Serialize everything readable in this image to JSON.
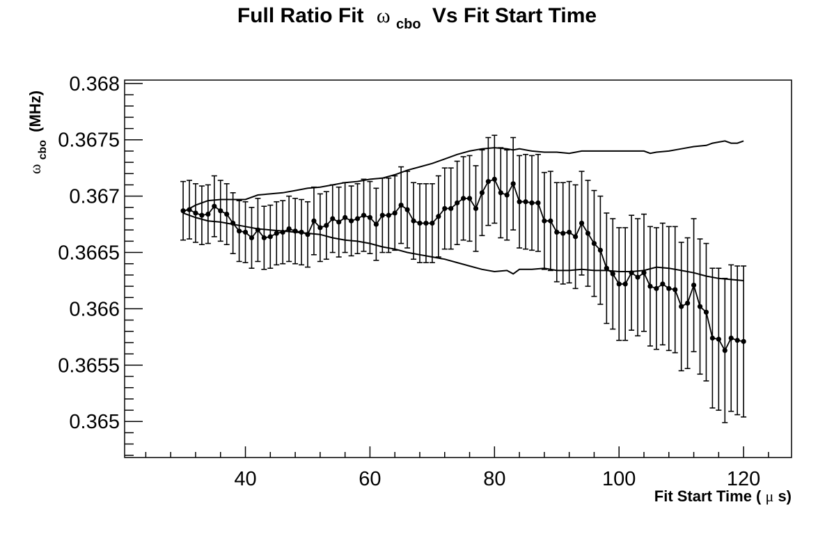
{
  "chart_data": {
    "type": "scatter",
    "title_parts": {
      "pre": "Full Ratio Fit",
      "symbol": "ω",
      "subscript": "cbo",
      "post": "Vs Fit Start Time"
    },
    "xlabel": {
      "text": "Fit Start Time (",
      "symbol": "μ",
      "unit": "s)"
    },
    "ylabel": {
      "symbol": "ω",
      "subscript": "cbo",
      "unit": "(MHz)"
    },
    "xlim": [
      20.6,
      127.7
    ],
    "ylim": [
      0.36468,
      0.36803
    ],
    "x_major_ticks": [
      40,
      60,
      80,
      100,
      120
    ],
    "x_tick_labels": [
      "40",
      "60",
      "80",
      "100",
      "120"
    ],
    "x_minor_step": 4,
    "y_major_ticks": [
      0.365,
      0.3655,
      0.366,
      0.3665,
      0.367,
      0.3675,
      0.368
    ],
    "y_tick_labels": [
      "0.365",
      "0.3655",
      "0.366",
      "0.3665",
      "0.367",
      "0.3675",
      "0.368"
    ],
    "y_minor_step": 0.0001,
    "grid": false,
    "series": [
      {
        "role": "measurements",
        "x": [
          30,
          31,
          32,
          33,
          34,
          35,
          36,
          37,
          38,
          39,
          40,
          41,
          42,
          43,
          44,
          45,
          46,
          47,
          48,
          49,
          50,
          51,
          52,
          53,
          54,
          55,
          56,
          57,
          58,
          59,
          60,
          61,
          62,
          63,
          64,
          65,
          66,
          67,
          68,
          69,
          70,
          71,
          72,
          73,
          74,
          75,
          76,
          77,
          78,
          79,
          80,
          81,
          82,
          83,
          84,
          85,
          86,
          87,
          88,
          89,
          90,
          91,
          92,
          93,
          94,
          95,
          96,
          97,
          98,
          99,
          100,
          101,
          102,
          103,
          104,
          105,
          106,
          107,
          108,
          109,
          110,
          111,
          112,
          113,
          114,
          115,
          116,
          117,
          118,
          119,
          120
        ],
        "y": [
          0.36687,
          0.36688,
          0.36685,
          0.36683,
          0.36684,
          0.36691,
          0.36687,
          0.36684,
          0.36676,
          0.36669,
          0.36668,
          0.36663,
          0.3667,
          0.36663,
          0.36664,
          0.36667,
          0.36668,
          0.36671,
          0.36669,
          0.36668,
          0.36666,
          0.36678,
          0.36672,
          0.36674,
          0.3668,
          0.36677,
          0.36681,
          0.36678,
          0.3668,
          0.36683,
          0.36681,
          0.36675,
          0.36683,
          0.36683,
          0.36685,
          0.36692,
          0.36688,
          0.36678,
          0.36676,
          0.36676,
          0.36676,
          0.36682,
          0.36689,
          0.36689,
          0.36694,
          0.36698,
          0.36698,
          0.36689,
          0.36703,
          0.36713,
          0.36715,
          0.36703,
          0.36701,
          0.36711,
          0.36695,
          0.36695,
          0.36694,
          0.36694,
          0.36678,
          0.36678,
          0.36668,
          0.36667,
          0.36668,
          0.36664,
          0.36676,
          0.36667,
          0.36658,
          0.36652,
          0.36636,
          0.36631,
          0.36622,
          0.36622,
          0.36632,
          0.36628,
          0.36632,
          0.3662,
          0.36618,
          0.36622,
          0.36618,
          0.36617,
          0.36602,
          0.36605,
          0.36621,
          0.36602,
          0.36597,
          0.36574,
          0.36573,
          0.36563,
          0.36574,
          0.36572,
          0.36571
        ],
        "yerr": [
          0.00026,
          0.00026,
          0.00026,
          0.00026,
          0.00026,
          0.00027,
          0.00027,
          0.00027,
          0.00027,
          0.00027,
          0.00027,
          0.00027,
          0.00028,
          0.00028,
          0.00028,
          0.00028,
          0.00028,
          0.00029,
          0.00029,
          0.00029,
          0.00029,
          0.0003,
          0.0003,
          0.0003,
          0.0003,
          0.00031,
          0.00031,
          0.00031,
          0.00031,
          0.00032,
          0.00032,
          0.00032,
          0.00033,
          0.00033,
          0.00033,
          0.00034,
          0.00034,
          0.00034,
          0.00035,
          0.00035,
          0.00035,
          0.00036,
          0.00036,
          0.00036,
          0.00037,
          0.00037,
          0.00038,
          0.00038,
          0.00038,
          0.00039,
          0.00039,
          0.0004,
          0.0004,
          0.00041,
          0.00041,
          0.00042,
          0.00042,
          0.00043,
          0.00043,
          0.00044,
          0.00044,
          0.00045,
          0.00045,
          0.00046,
          0.00046,
          0.00047,
          0.00047,
          0.00048,
          0.00049,
          0.00049,
          0.0005,
          0.0005,
          0.00051,
          0.00052,
          0.00052,
          0.00053,
          0.00054,
          0.00054,
          0.00055,
          0.00056,
          0.00057,
          0.00058,
          0.00059,
          0.0006,
          0.00061,
          0.00062,
          0.00063,
          0.00064,
          0.00065,
          0.00066,
          0.00067
        ],
        "color": "#000000"
      },
      {
        "role": "upper-band",
        "x": [
          30,
          32,
          34,
          36,
          38,
          40,
          42,
          44,
          46,
          48,
          50,
          52,
          54,
          56,
          58,
          60,
          62,
          64,
          66,
          68,
          70,
          72,
          74,
          76,
          78,
          80,
          82,
          83,
          84,
          86,
          88,
          90,
          92,
          94,
          96,
          98,
          100,
          102,
          104,
          105,
          106,
          108,
          110,
          112,
          114,
          115,
          116,
          117,
          118,
          119,
          120
        ],
        "y": [
          0.36686,
          0.36692,
          0.36696,
          0.36697,
          0.36697,
          0.36697,
          0.36701,
          0.36702,
          0.36703,
          0.36705,
          0.36707,
          0.36708,
          0.3671,
          0.36712,
          0.36713,
          0.36715,
          0.36716,
          0.36719,
          0.36723,
          0.36726,
          0.36729,
          0.36733,
          0.36737,
          0.3674,
          0.36742,
          0.36743,
          0.36742,
          0.36741,
          0.36742,
          0.3674,
          0.36739,
          0.36739,
          0.36738,
          0.3674,
          0.3674,
          0.3674,
          0.3674,
          0.3674,
          0.3674,
          0.36738,
          0.36739,
          0.3674,
          0.36742,
          0.36744,
          0.36745,
          0.36747,
          0.36748,
          0.36749,
          0.36747,
          0.36747,
          0.36749
        ],
        "color": "#000000"
      },
      {
        "role": "lower-band",
        "x": [
          30,
          32,
          34,
          36,
          38,
          40,
          42,
          44,
          46,
          48,
          50,
          52,
          54,
          56,
          58,
          60,
          62,
          64,
          66,
          68,
          70,
          72,
          74,
          76,
          78,
          80,
          82,
          83,
          84,
          86,
          88,
          90,
          92,
          94,
          96,
          98,
          100,
          102,
          104,
          106,
          108,
          110,
          112,
          114,
          116,
          118,
          120
        ],
        "y": [
          0.36685,
          0.36681,
          0.36678,
          0.36677,
          0.36675,
          0.36673,
          0.36671,
          0.3667,
          0.36669,
          0.36668,
          0.36667,
          0.36666,
          0.36663,
          0.36661,
          0.3666,
          0.36658,
          0.36655,
          0.36653,
          0.3665,
          0.36648,
          0.36646,
          0.36644,
          0.36641,
          0.36638,
          0.36635,
          0.36633,
          0.36634,
          0.36631,
          0.36635,
          0.36635,
          0.36636,
          0.36634,
          0.36634,
          0.36635,
          0.36634,
          0.36634,
          0.36633,
          0.36633,
          0.36634,
          0.36637,
          0.36636,
          0.36634,
          0.36632,
          0.36629,
          0.36627,
          0.36626,
          0.36625
        ],
        "color": "#000000"
      }
    ]
  }
}
